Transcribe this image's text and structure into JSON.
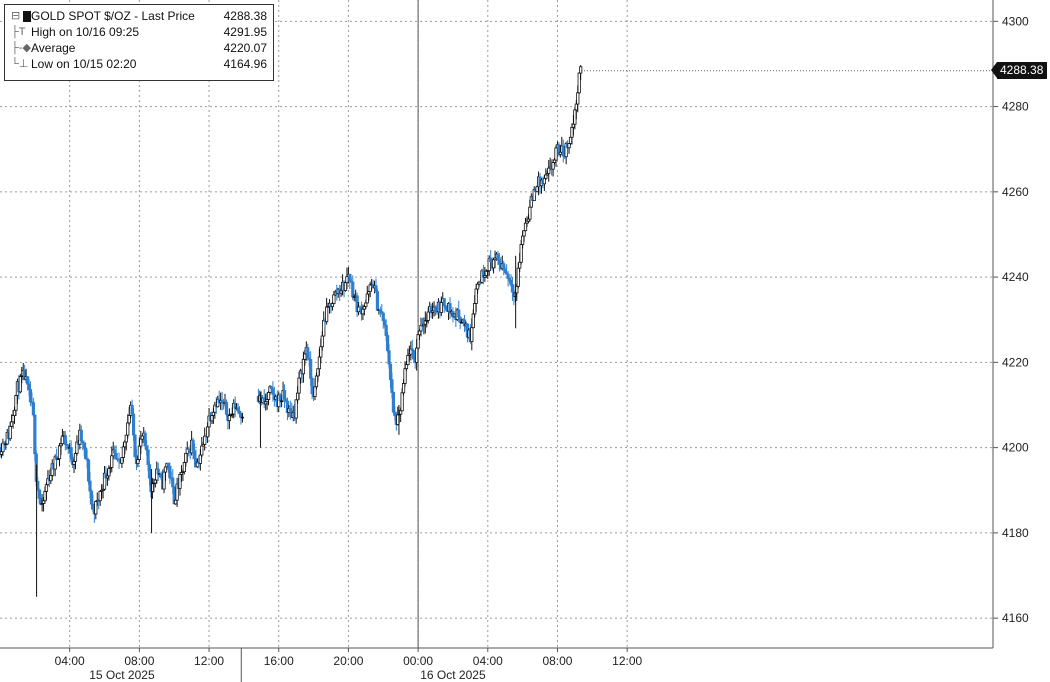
{
  "chart_data": {
    "type": "candlestick",
    "legend": {
      "title": "GOLD SPOT $/OZ - Last Price",
      "last_price": "4288.38",
      "rows": [
        {
          "icon": "high-marker-icon",
          "label": "High on 10/16 09:25",
          "value": "4291.95"
        },
        {
          "icon": "average-marker-icon",
          "label": "Average",
          "value": "4220.07"
        },
        {
          "icon": "low-marker-icon",
          "label": "Low on 10/15 02:20",
          "value": "4164.96"
        }
      ]
    },
    "last_price_badge": "4288.38",
    "y_axis": {
      "side": "right",
      "min": 4153,
      "max": 4305,
      "ticks": [
        4160,
        4180,
        4200,
        4220,
        4240,
        4260,
        4280,
        4300
      ],
      "tick_labels": [
        "4160",
        "4180",
        "4200",
        "4220",
        "4240",
        "4260",
        "4280",
        "4300"
      ]
    },
    "x_axis": {
      "range_hours": [
        0,
        57
      ],
      "ticks": [
        {
          "h": 4,
          "label": "04:00"
        },
        {
          "h": 8,
          "label": "08:00"
        },
        {
          "h": 12,
          "label": "12:00"
        },
        {
          "h": 16,
          "label": "16:00"
        },
        {
          "h": 20,
          "label": "20:00"
        },
        {
          "h": 24,
          "label": "00:00"
        },
        {
          "h": 28,
          "label": "04:00"
        },
        {
          "h": 32,
          "label": "08:00"
        },
        {
          "h": 36,
          "label": "12:00"
        }
      ],
      "dates": [
        {
          "h": 7,
          "label": "15 Oct 2025"
        },
        {
          "h": 26,
          "label": "16 Oct 2025"
        }
      ],
      "session_break_h": 24
    },
    "gap_hours": [
      13.95,
      14.8
    ],
    "hours_per_bar": 0.08333,
    "price_path": [
      [
        0.0,
        4200
      ],
      [
        0.5,
        4203
      ],
      [
        1.0,
        4214
      ],
      [
        1.4,
        4217
      ],
      [
        1.9,
        4208
      ],
      [
        2.1,
        4192
      ],
      [
        2.4,
        4185
      ],
      [
        2.7,
        4192
      ],
      [
        3.2,
        4197
      ],
      [
        3.6,
        4203
      ],
      [
        4.2,
        4197
      ],
      [
        4.6,
        4203
      ],
      [
        5.0,
        4196
      ],
      [
        5.3,
        4185
      ],
      [
        5.6,
        4187
      ],
      [
        6.0,
        4193
      ],
      [
        6.5,
        4198
      ],
      [
        6.9,
        4195
      ],
      [
        7.2,
        4203
      ],
      [
        7.5,
        4210
      ],
      [
        7.8,
        4197
      ],
      [
        8.2,
        4203
      ],
      [
        8.5,
        4196
      ],
      [
        8.7,
        4190
      ],
      [
        9.0,
        4195
      ],
      [
        9.3,
        4191
      ],
      [
        9.6,
        4197
      ],
      [
        10.0,
        4188
      ],
      [
        10.4,
        4193
      ],
      [
        10.7,
        4198
      ],
      [
        11.0,
        4201
      ],
      [
        11.3,
        4196
      ],
      [
        11.7,
        4201
      ],
      [
        12.0,
        4207
      ],
      [
        12.4,
        4211
      ],
      [
        12.8,
        4210
      ],
      [
        13.2,
        4207
      ],
      [
        13.5,
        4210
      ],
      [
        13.8,
        4208
      ],
      [
        14.8,
        4212
      ],
      [
        15.2,
        4210
      ],
      [
        15.5,
        4213
      ],
      [
        15.9,
        4211
      ],
      [
        16.3,
        4212
      ],
      [
        16.6,
        4208
      ],
      [
        16.9,
        4208
      ],
      [
        17.2,
        4216
      ],
      [
        17.6,
        4224
      ],
      [
        18.0,
        4211
      ],
      [
        18.3,
        4220
      ],
      [
        18.6,
        4230
      ],
      [
        19.0,
        4234
      ],
      [
        19.4,
        4237
      ],
      [
        19.8,
        4238
      ],
      [
        20.0,
        4241
      ],
      [
        20.3,
        4236
      ],
      [
        20.6,
        4232
      ],
      [
        21.0,
        4234
      ],
      [
        21.4,
        4239
      ],
      [
        21.7,
        4233
      ],
      [
        22.0,
        4230
      ],
      [
        22.3,
        4222
      ],
      [
        22.6,
        4207
      ],
      [
        22.9,
        4206
      ],
      [
        23.2,
        4216
      ],
      [
        23.5,
        4223
      ],
      [
        23.8,
        4220
      ],
      [
        24.1,
        4229
      ],
      [
        24.5,
        4230
      ],
      [
        24.8,
        4233
      ],
      [
        25.2,
        4233
      ],
      [
        25.6,
        4234
      ],
      [
        26.0,
        4231
      ],
      [
        26.4,
        4231
      ],
      [
        26.7,
        4228
      ],
      [
        27.0,
        4226
      ],
      [
        27.3,
        4237
      ],
      [
        27.6,
        4240
      ],
      [
        28.0,
        4243
      ],
      [
        28.4,
        4244
      ],
      [
        28.8,
        4243
      ],
      [
        29.2,
        4240
      ],
      [
        29.6,
        4236
      ],
      [
        30.0,
        4250
      ],
      [
        30.4,
        4256
      ],
      [
        30.8,
        4262
      ],
      [
        31.2,
        4262
      ],
      [
        31.6,
        4265
      ],
      [
        32.0,
        4270
      ],
      [
        32.4,
        4269
      ],
      [
        32.8,
        4274
      ],
      [
        33.0,
        4278
      ],
      [
        33.2,
        4286
      ],
      [
        33.35,
        4288.38
      ]
    ],
    "spikes": [
      {
        "h": 2.1,
        "low": 4165,
        "high": 4196
      },
      {
        "h": 8.7,
        "low": 4180,
        "high": 4195
      },
      {
        "h": 14.95,
        "low": 4200,
        "high": 4213
      },
      {
        "h": 29.6,
        "low": 4228,
        "high": 4245
      },
      {
        "h": 22.9,
        "low": 4203,
        "high": 4210
      }
    ]
  }
}
